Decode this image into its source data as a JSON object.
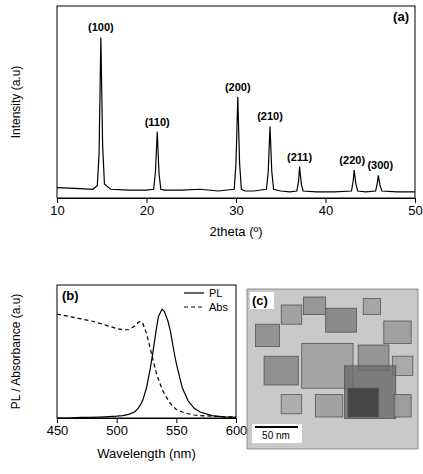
{
  "chart_data": [
    {
      "type": "line",
      "panel_label": "(a)",
      "xlabel": "2theta (º)",
      "ylabel": "Intensity (a.u)",
      "xlim": [
        10,
        50
      ],
      "xticks": [
        10,
        20,
        30,
        40,
        50
      ],
      "ylim": [
        0,
        110
      ],
      "tick_labels": "x",
      "color": "#000000",
      "x": [
        10,
        12,
        14,
        14.5,
        14.7,
        14.9,
        15.1,
        15.3,
        16,
        18,
        20,
        20.8,
        21,
        21.2,
        21.4,
        21.6,
        22,
        24,
        26,
        28,
        29.8,
        30,
        30.2,
        30.4,
        30.6,
        31,
        32,
        33.4,
        33.6,
        33.8,
        34,
        34.2,
        35,
        36,
        36.8,
        37,
        37.1,
        37.3,
        37.5,
        39,
        41,
        42.9,
        43.1,
        43.2,
        43.4,
        43.6,
        44.5,
        45.6,
        45.8,
        45.9,
        46.1,
        46.3,
        48,
        50
      ],
      "values": [
        6,
        5.5,
        5,
        7,
        25,
        92,
        30,
        8,
        5,
        4.5,
        4.5,
        5,
        15,
        38,
        14,
        5,
        4.5,
        4.5,
        5,
        4,
        5,
        20,
        58,
        20,
        5,
        4,
        4,
        5,
        15,
        41,
        15,
        5,
        4,
        3.5,
        4,
        10,
        18,
        8,
        4,
        3.5,
        3.5,
        4,
        10,
        16,
        8,
        4,
        3.5,
        4,
        9,
        13,
        7,
        4,
        3.5,
        3.5
      ],
      "annotations": [
        {
          "text": "(100)",
          "x": 14.9,
          "y": 92
        },
        {
          "text": "(110)",
          "x": 21.2,
          "y": 38
        },
        {
          "text": "(200)",
          "x": 30.2,
          "y": 58
        },
        {
          "text": "(210)",
          "x": 33.8,
          "y": 41
        },
        {
          "text": "(211)",
          "x": 37.1,
          "y": 18
        },
        {
          "text": "(220)",
          "x": 43.2,
          "y": 16
        },
        {
          "text": "(300)",
          "x": 45.9,
          "y": 13
        }
      ]
    },
    {
      "type": "line",
      "panel_label": "(b)",
      "xlabel": "Wavelength (nm)",
      "ylabel": "PL / Absorbance (a.u)",
      "xlim": [
        450,
        600
      ],
      "xticks": [
        450,
        500,
        550,
        600
      ],
      "ylim": [
        0,
        110
      ],
      "tick_labels": "x",
      "legend": "upper right",
      "x": [
        450,
        460,
        470,
        480,
        490,
        500,
        505,
        510,
        515,
        518,
        520,
        522,
        525,
        528,
        530,
        533,
        535,
        538,
        540,
        543,
        545,
        548,
        550,
        555,
        560,
        565,
        570,
        580,
        590,
        600
      ],
      "series": [
        {
          "name": "PL",
          "color": "#000000",
          "line_style": "solid",
          "values": [
            0,
            0,
            0.5,
            0.5,
            1,
            1.5,
            2,
            3,
            5,
            8,
            11,
            15,
            25,
            40,
            52,
            72,
            84,
            90,
            88,
            80,
            72,
            55,
            45,
            25,
            14,
            8,
            5,
            2,
            1,
            0.5
          ]
        },
        {
          "name": "Abs",
          "color": "#000000",
          "line_style": "dashed",
          "values": [
            86,
            84,
            82,
            80,
            77,
            74,
            73,
            73,
            76,
            79,
            80,
            78,
            70,
            58,
            50,
            38,
            32,
            24,
            20,
            15,
            12,
            9,
            7,
            5,
            3.5,
            2.5,
            2,
            1.5,
            1,
            1
          ]
        }
      ]
    },
    {
      "type": "image",
      "panel_label": "(c)",
      "annotations": [
        {
          "text": "50 nm"
        }
      ]
    }
  ]
}
